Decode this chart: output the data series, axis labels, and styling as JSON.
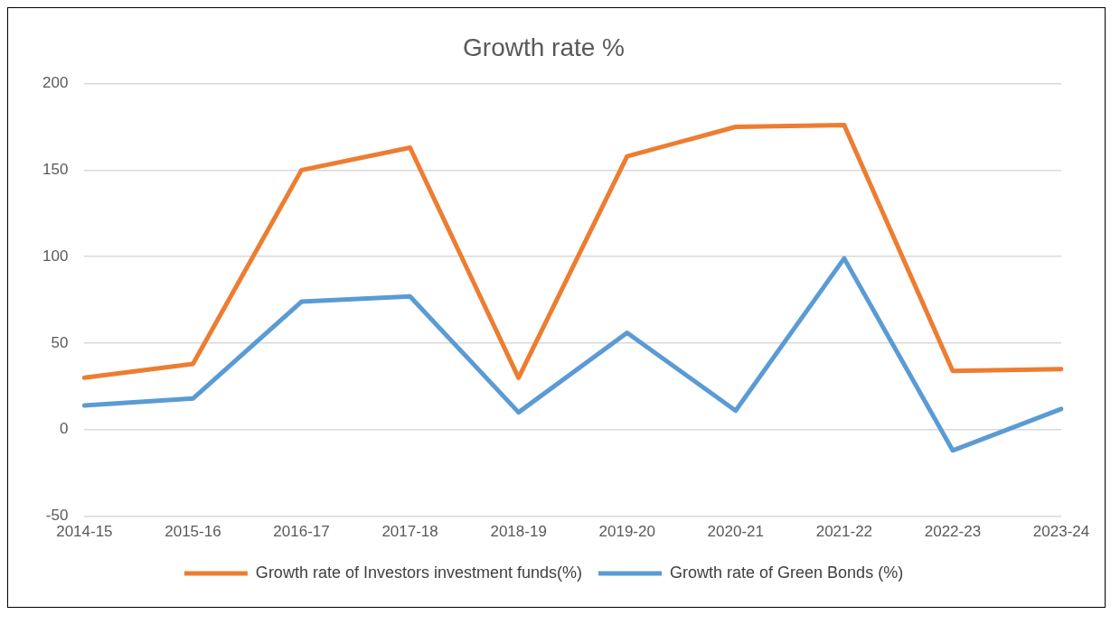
{
  "chart_data": {
    "type": "line",
    "title": "Growth rate %",
    "categories": [
      "2014-15",
      "2015-16",
      "2016-17",
      "2017-18",
      "2018-19",
      "2019-20",
      "2020-21",
      "2021-22",
      "2022-23",
      "2023-24"
    ],
    "series": [
      {
        "name": "Growth rate of Investors investment funds(%)",
        "color": "#ed7d31",
        "values": [
          30,
          38,
          150,
          163,
          30,
          158,
          175,
          176,
          34,
          35
        ]
      },
      {
        "name": "Growth rate of Green Bonds (%)",
        "color": "#5b9bd5",
        "values": [
          14,
          18,
          74,
          77,
          10,
          56,
          11,
          99,
          -12,
          12
        ]
      }
    ],
    "ylim": [
      -50,
      200
    ],
    "yticks": [
      -50,
      0,
      50,
      100,
      150,
      200
    ],
    "grid": "y",
    "legend": "bottom",
    "marker": "none",
    "line_style": "solid"
  }
}
